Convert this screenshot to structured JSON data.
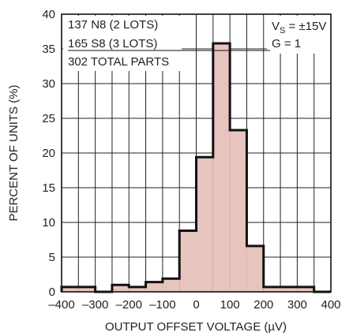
{
  "chart_data": {
    "type": "bar",
    "xlabel": "OUTPUT OFFSET VOLTAGE (µV)",
    "ylabel": "PERCENT OF UNITS (%)",
    "xlim": [
      -400,
      400
    ],
    "ylim": [
      0,
      40
    ],
    "x_ticks": [
      -400,
      -300,
      -200,
      -100,
      0,
      100,
      200,
      300,
      400
    ],
    "x_tick_labels": [
      "–400",
      "–300",
      "–200",
      "–100",
      "0",
      "100",
      "200",
      "300",
      "400"
    ],
    "y_ticks": [
      0,
      5,
      10,
      15,
      20,
      25,
      30,
      35,
      40
    ],
    "bin_width": 50,
    "bins": [
      {
        "start": -400,
        "end": -350,
        "value": 0.7
      },
      {
        "start": -350,
        "end": -300,
        "value": 0.7
      },
      {
        "start": -300,
        "end": -250,
        "value": 0
      },
      {
        "start": -250,
        "end": -200,
        "value": 1.0
      },
      {
        "start": -200,
        "end": -150,
        "value": 0.7
      },
      {
        "start": -150,
        "end": -100,
        "value": 1.4
      },
      {
        "start": -100,
        "end": -50,
        "value": 1.9
      },
      {
        "start": -50,
        "end": 0,
        "value": 8.8
      },
      {
        "start": 0,
        "end": 50,
        "value": 19.4
      },
      {
        "start": 50,
        "end": 100,
        "value": 35.8
      },
      {
        "start": 100,
        "end": 150,
        "value": 23.3
      },
      {
        "start": 150,
        "end": 200,
        "value": 6.6
      },
      {
        "start": 200,
        "end": 250,
        "value": 0.7
      },
      {
        "start": 250,
        "end": 300,
        "value": 0.7
      },
      {
        "start": 300,
        "end": 350,
        "value": 0.7
      },
      {
        "start": 350,
        "end": 400,
        "value": 0
      }
    ],
    "grid": true,
    "bar_fill": "#e8c4be",
    "bar_outline": "#111111"
  },
  "annotations": {
    "left": {
      "line1": "137 N8 (2 LOTS)",
      "line2_num": "165",
      "line2_rest": " S8 (3 LOTS)",
      "line3": "302 TOTAL PARTS"
    },
    "right": {
      "vs_prefix": "V",
      "vs_sub": "S",
      "vs_rest": " = ±15V",
      "gain": "G = 1"
    }
  }
}
